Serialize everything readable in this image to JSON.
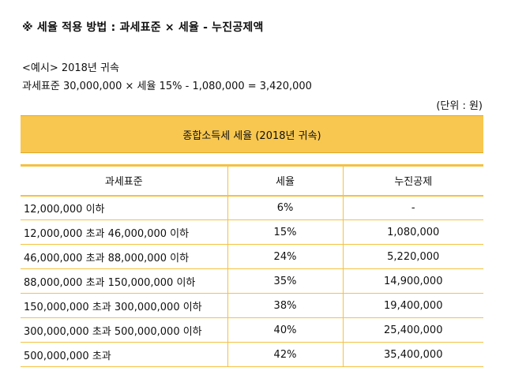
{
  "heading": "※ 세율 적용 방법 : 과세표준 × 세율 - 누진공제액",
  "example": {
    "title": "<예시> 2018년 귀속",
    "formula": "과세표준 30,000,000 × 세율 15% - 1,080,000 = 3,420,000"
  },
  "unit_note": "(단위 : 원)",
  "banner": "종합소득세 세율 (2018년 귀속)",
  "colors": {
    "accent": "#f8c74f",
    "line": "#f5c142"
  },
  "table": {
    "headers": [
      "과세표준",
      "세율",
      "누진공제"
    ],
    "rows": [
      [
        "12,000,000 이하",
        "6%",
        "-"
      ],
      [
        "12,000,000 초과 46,000,000 이하",
        "15%",
        "1,080,000"
      ],
      [
        "46,000,000 초과 88,000,000 이하",
        "24%",
        "5,220,000"
      ],
      [
        "88,000,000 초과 150,000,000 이하",
        "35%",
        "14,900,000"
      ],
      [
        "150,000,000 초과 300,000,000 이하",
        "38%",
        "19,400,000"
      ],
      [
        "300,000,000 초과 500,000,000 이하",
        "40%",
        "25,400,000"
      ],
      [
        "500,000,000 초과",
        "42%",
        "35,400,000"
      ]
    ]
  }
}
